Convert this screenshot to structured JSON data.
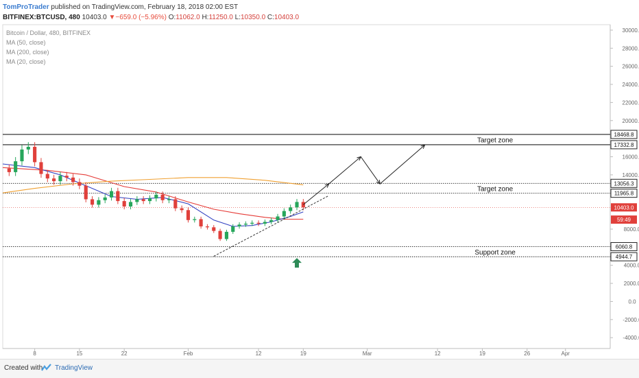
{
  "header": {
    "author": "TomProTrader",
    "published_text": "published on TradingView.com, February 18, 2018 02:00 EST",
    "symbol": "BITFINEX:BTCUSD, 480",
    "last": "10403.0",
    "change_arrow": "▼",
    "change": "−659.0 (−5.96%)",
    "o_label": "O:",
    "o_value": "11062.0",
    "h_label": "H:",
    "h_value": "11250.0",
    "l_label": "L:",
    "l_value": "10350.0",
    "c_label": "C:",
    "c_value": "10403.0"
  },
  "legend": {
    "title": "Bitcoin / Dollar, 480, BITFINEX",
    "ma50": "MA (50, close)",
    "ma200": "MA (200, close)",
    "ma20": "MA (20, close)"
  },
  "footer": {
    "created_with": "Created with",
    "brand": "TradingView"
  },
  "chart_data": {
    "type": "candlestick",
    "symbol": "BITFINEX:BTCUSD",
    "interval": "480",
    "ylim": [
      -5200,
      30600
    ],
    "y_ticks": [
      30000,
      28000,
      26000,
      24000,
      22000,
      20000,
      16000,
      14000,
      8000,
      4000,
      2000,
      0,
      -2000,
      -4000
    ],
    "y_tick_labels": [
      "30000.0",
      "28000.0",
      "26000.0",
      "24000.0",
      "22000.0",
      "20000.0",
      "16000.0",
      "14000.0",
      "8000.0",
      "4000.0",
      "2000.0",
      "0.0",
      "-2000.0",
      "-4000.0"
    ],
    "x_ticks": [
      {
        "label": "8",
        "day": 8
      },
      {
        "label": "15",
        "day": 15
      },
      {
        "label": "22",
        "day": 22
      },
      {
        "label": "Feb",
        "day": 32
      },
      {
        "label": "12",
        "day": 43
      },
      {
        "label": "19",
        "day": 50
      },
      {
        "label": "Mar",
        "day": 60
      },
      {
        "label": "12",
        "day": 71
      },
      {
        "label": "19",
        "day": 78
      },
      {
        "label": "26",
        "day": 85
      },
      {
        "label": "Apr",
        "day": 91
      }
    ],
    "x_range_days": [
      3,
      98
    ],
    "price_levels": [
      {
        "label": "18468.8",
        "value": 18468.8,
        "line": "solid"
      },
      {
        "label": "17332.8",
        "value": 17332.8,
        "line": "solid"
      },
      {
        "label": "13056.3",
        "value": 13056.3,
        "line": "dotted"
      },
      {
        "label": "11965.8",
        "value": 11965.8,
        "line": "dotted"
      },
      {
        "label": "6060.8",
        "value": 6060.8,
        "line": "dotted"
      },
      {
        "label": "4944.7",
        "value": 4944.7,
        "line": "dotted"
      }
    ],
    "last_price": {
      "label": "10403.0",
      "value": 10403.0,
      "color": "#e0403b"
    },
    "countdown": {
      "label": "59:49",
      "value": 9050
    },
    "zone_labels": [
      {
        "text": "Target zone",
        "day": 80,
        "value": 17900
      },
      {
        "text": "Target zone",
        "day": 80,
        "value": 12500
      },
      {
        "text": "Support zone",
        "day": 80,
        "value": 5500
      }
    ],
    "close_points": [
      {
        "day": 3,
        "close": 14700
      },
      {
        "day": 4,
        "close": 14300
      },
      {
        "day": 5,
        "close": 15500
      },
      {
        "day": 6,
        "close": 16800
      },
      {
        "day": 7,
        "close": 17100
      },
      {
        "day": 8,
        "close": 15400
      },
      {
        "day": 9,
        "close": 14100
      },
      {
        "day": 10,
        "close": 13600
      },
      {
        "day": 11,
        "close": 13300
      },
      {
        "day": 12,
        "close": 13900
      },
      {
        "day": 13,
        "close": 13700
      },
      {
        "day": 14,
        "close": 13200
      },
      {
        "day": 15,
        "close": 12800
      },
      {
        "day": 16,
        "close": 11300
      },
      {
        "day": 17,
        "close": 10700
      },
      {
        "day": 18,
        "close": 11200
      },
      {
        "day": 19,
        "close": 11500
      },
      {
        "day": 20,
        "close": 12200
      },
      {
        "day": 21,
        "close": 11100
      },
      {
        "day": 22,
        "close": 10500
      },
      {
        "day": 23,
        "close": 11000
      },
      {
        "day": 24,
        "close": 11300
      },
      {
        "day": 25,
        "close": 11100
      },
      {
        "day": 26,
        "close": 11400
      },
      {
        "day": 27,
        "close": 11800
      },
      {
        "day": 28,
        "close": 11200
      },
      {
        "day": 29,
        "close": 11300
      },
      {
        "day": 30,
        "close": 10300
      },
      {
        "day": 31,
        "close": 10100
      },
      {
        "day": 32,
        "close": 9000
      },
      {
        "day": 33,
        "close": 9100
      },
      {
        "day": 34,
        "close": 8300
      },
      {
        "day": 35,
        "close": 8200
      },
      {
        "day": 36,
        "close": 7800
      },
      {
        "day": 37,
        "close": 6900
      },
      {
        "day": 38,
        "close": 7700
      },
      {
        "day": 39,
        "close": 8300
      },
      {
        "day": 40,
        "close": 8500
      },
      {
        "day": 41,
        "close": 8600
      },
      {
        "day": 42,
        "close": 8700
      },
      {
        "day": 43,
        "close": 8600
      },
      {
        "day": 44,
        "close": 8800
      },
      {
        "day": 45,
        "close": 9000
      },
      {
        "day": 46,
        "close": 9400
      },
      {
        "day": 47,
        "close": 10000
      },
      {
        "day": 48,
        "close": 10400
      },
      {
        "day": 49,
        "close": 11000
      },
      {
        "day": 50,
        "close": 10400
      }
    ],
    "moving_averages": [
      {
        "name": "MA (50, close)",
        "color": "#e53935",
        "points": [
          {
            "day": 3,
            "value": 14800
          },
          {
            "day": 10,
            "value": 14500
          },
          {
            "day": 16,
            "value": 14000
          },
          {
            "day": 22,
            "value": 12700
          },
          {
            "day": 27,
            "value": 12100
          },
          {
            "day": 32,
            "value": 11000
          },
          {
            "day": 36,
            "value": 10200
          },
          {
            "day": 40,
            "value": 9700
          },
          {
            "day": 44,
            "value": 9300
          },
          {
            "day": 47,
            "value": 9100
          },
          {
            "day": 50,
            "value": 9100
          }
        ]
      },
      {
        "name": "MA (200, close)",
        "color": "#f0a030",
        "points": [
          {
            "day": 3,
            "value": 12000
          },
          {
            "day": 8,
            "value": 12500
          },
          {
            "day": 14,
            "value": 13000
          },
          {
            "day": 20,
            "value": 13300
          },
          {
            "day": 26,
            "value": 13500
          },
          {
            "day": 32,
            "value": 13700
          },
          {
            "day": 38,
            "value": 13700
          },
          {
            "day": 44,
            "value": 13400
          },
          {
            "day": 50,
            "value": 12900
          }
        ]
      },
      {
        "name": "MA (20, close)",
        "color": "#2f3fc0",
        "points": [
          {
            "day": 3,
            "value": 15200
          },
          {
            "day": 8,
            "value": 14800
          },
          {
            "day": 12,
            "value": 14000
          },
          {
            "day": 16,
            "value": 12800
          },
          {
            "day": 20,
            "value": 11600
          },
          {
            "day": 24,
            "value": 11300
          },
          {
            "day": 28,
            "value": 11500
          },
          {
            "day": 32,
            "value": 10800
          },
          {
            "day": 36,
            "value": 9000
          },
          {
            "day": 39,
            "value": 8300
          },
          {
            "day": 42,
            "value": 8400
          },
          {
            "day": 45,
            "value": 8800
          },
          {
            "day": 48,
            "value": 9400
          },
          {
            "day": 50,
            "value": 9900
          }
        ]
      }
    ],
    "trendline": [
      {
        "day": 36,
        "value": 5000
      },
      {
        "day": 54,
        "value": 11700
      }
    ],
    "projection_arrows": [
      [
        {
          "day": 50,
          "value": 10700
        },
        {
          "day": 54,
          "value": 13000
        }
      ],
      [
        {
          "day": 54,
          "value": 13000
        },
        {
          "day": 59,
          "value": 16000
        }
      ],
      [
        {
          "day": 59,
          "value": 16000
        },
        {
          "day": 62,
          "value": 13000
        }
      ],
      [
        {
          "day": 62,
          "value": 13000
        },
        {
          "day": 69,
          "value": 17300
        }
      ]
    ],
    "signal_marker": {
      "type": "up-arrow",
      "color": "#2e8b57",
      "day": 49,
      "value": 4200
    },
    "colors": {
      "up_candle": "#26a65b",
      "down_candle": "#e0403b",
      "grid_axis": "#cccccc"
    }
  }
}
